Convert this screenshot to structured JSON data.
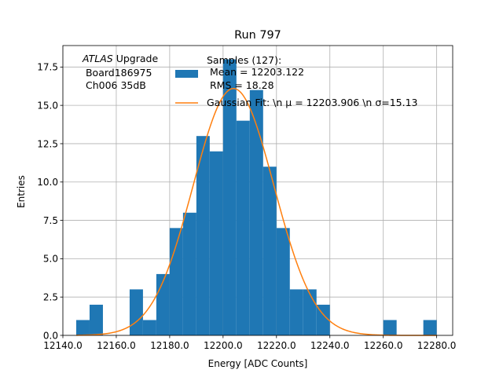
{
  "chart_data": {
    "type": "bar",
    "title": "Run 797",
    "xlabel": "Energy [ADC Counts]",
    "ylabel": "Entries",
    "xlim": [
      12140.0,
      12286.0
    ],
    "ylim": [
      0,
      18.9
    ],
    "grid": true,
    "xticks": [
      12140.0,
      12160.0,
      12180.0,
      12200.0,
      12220.0,
      12240.0,
      12260.0,
      12280.0
    ],
    "xtick_labels": [
      "12140.0",
      "12160.0",
      "12180.0",
      "12200.0",
      "12220.0",
      "12240.0",
      "12260.0",
      "12280.0"
    ],
    "yticks": [
      0.0,
      2.5,
      5.0,
      7.5,
      10.0,
      12.5,
      15.0,
      17.5
    ],
    "ytick_labels": [
      "0.0",
      "2.5",
      "5.0",
      "7.5",
      "10.0",
      "12.5",
      "15.0",
      "17.5"
    ],
    "bin_edges": [
      12145,
      12150,
      12155,
      12160,
      12165,
      12170,
      12175,
      12180,
      12185,
      12190,
      12195,
      12200,
      12205,
      12210,
      12215,
      12220,
      12225,
      12230,
      12235,
      12240,
      12245,
      12250,
      12255,
      12260,
      12265,
      12270,
      12275,
      12280
    ],
    "series": [
      {
        "kind": "histogram",
        "color": "#1f77b4",
        "values": [
          1,
          2,
          0,
          0,
          3,
          1,
          4,
          7,
          8,
          13,
          12,
          18,
          14,
          16,
          11,
          7,
          3,
          3,
          2,
          0,
          0,
          0,
          0,
          1,
          0,
          0,
          1
        ]
      },
      {
        "kind": "gaussian-fit",
        "color": "#ff7f0e",
        "mu": 12203.906,
        "sigma": 15.13,
        "amplitude": 16.1
      }
    ],
    "legend": {
      "placement": "upper-center",
      "hist_label_lines": [
        "Samples (127):",
        " Mean = 12203.122",
        " RMS = 18.28"
      ],
      "fit_label": "Gaussian Fit: \\n μ = 12203.906 \\n σ=15.13"
    },
    "annotation": {
      "italic_part": "ATLAS",
      "line1_rest": " Upgrade",
      "line2": " Board186975",
      "line3": " Ch006 35dB"
    }
  }
}
